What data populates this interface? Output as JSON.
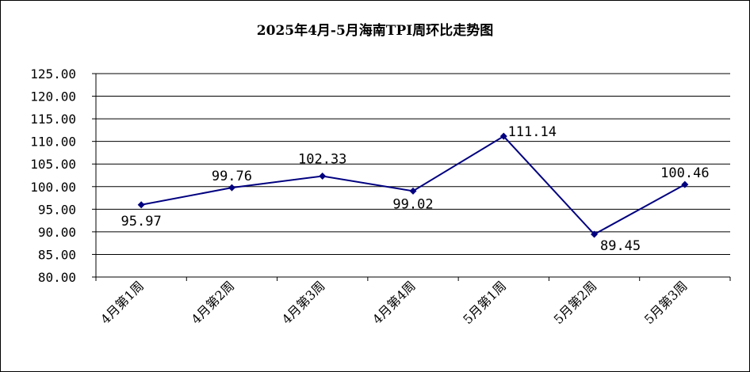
{
  "chart_data": {
    "type": "line",
    "title": "2025年4月-5月海南TPI周环比走势图",
    "xlabel": "",
    "ylabel": "",
    "categories": [
      "4月第1周",
      "4月第2周",
      "4月第3周",
      "4月第4周",
      "5月第1周",
      "5月第2周",
      "5月第3周"
    ],
    "values": [
      95.97,
      99.76,
      102.33,
      99.02,
      111.14,
      89.45,
      100.46
    ],
    "data_labels": [
      "95.97",
      "99.76",
      "102.33",
      "99.02",
      "111.14",
      "89.45",
      "100.46"
    ],
    "ylim": [
      80,
      125
    ],
    "yticks": [
      "80.00",
      "85.00",
      "90.00",
      "95.00",
      "100.00",
      "105.00",
      "110.00",
      "115.00",
      "120.00",
      "125.00"
    ],
    "grid": true,
    "legend": "none",
    "line_color": "#000080",
    "marker": "diamond"
  }
}
